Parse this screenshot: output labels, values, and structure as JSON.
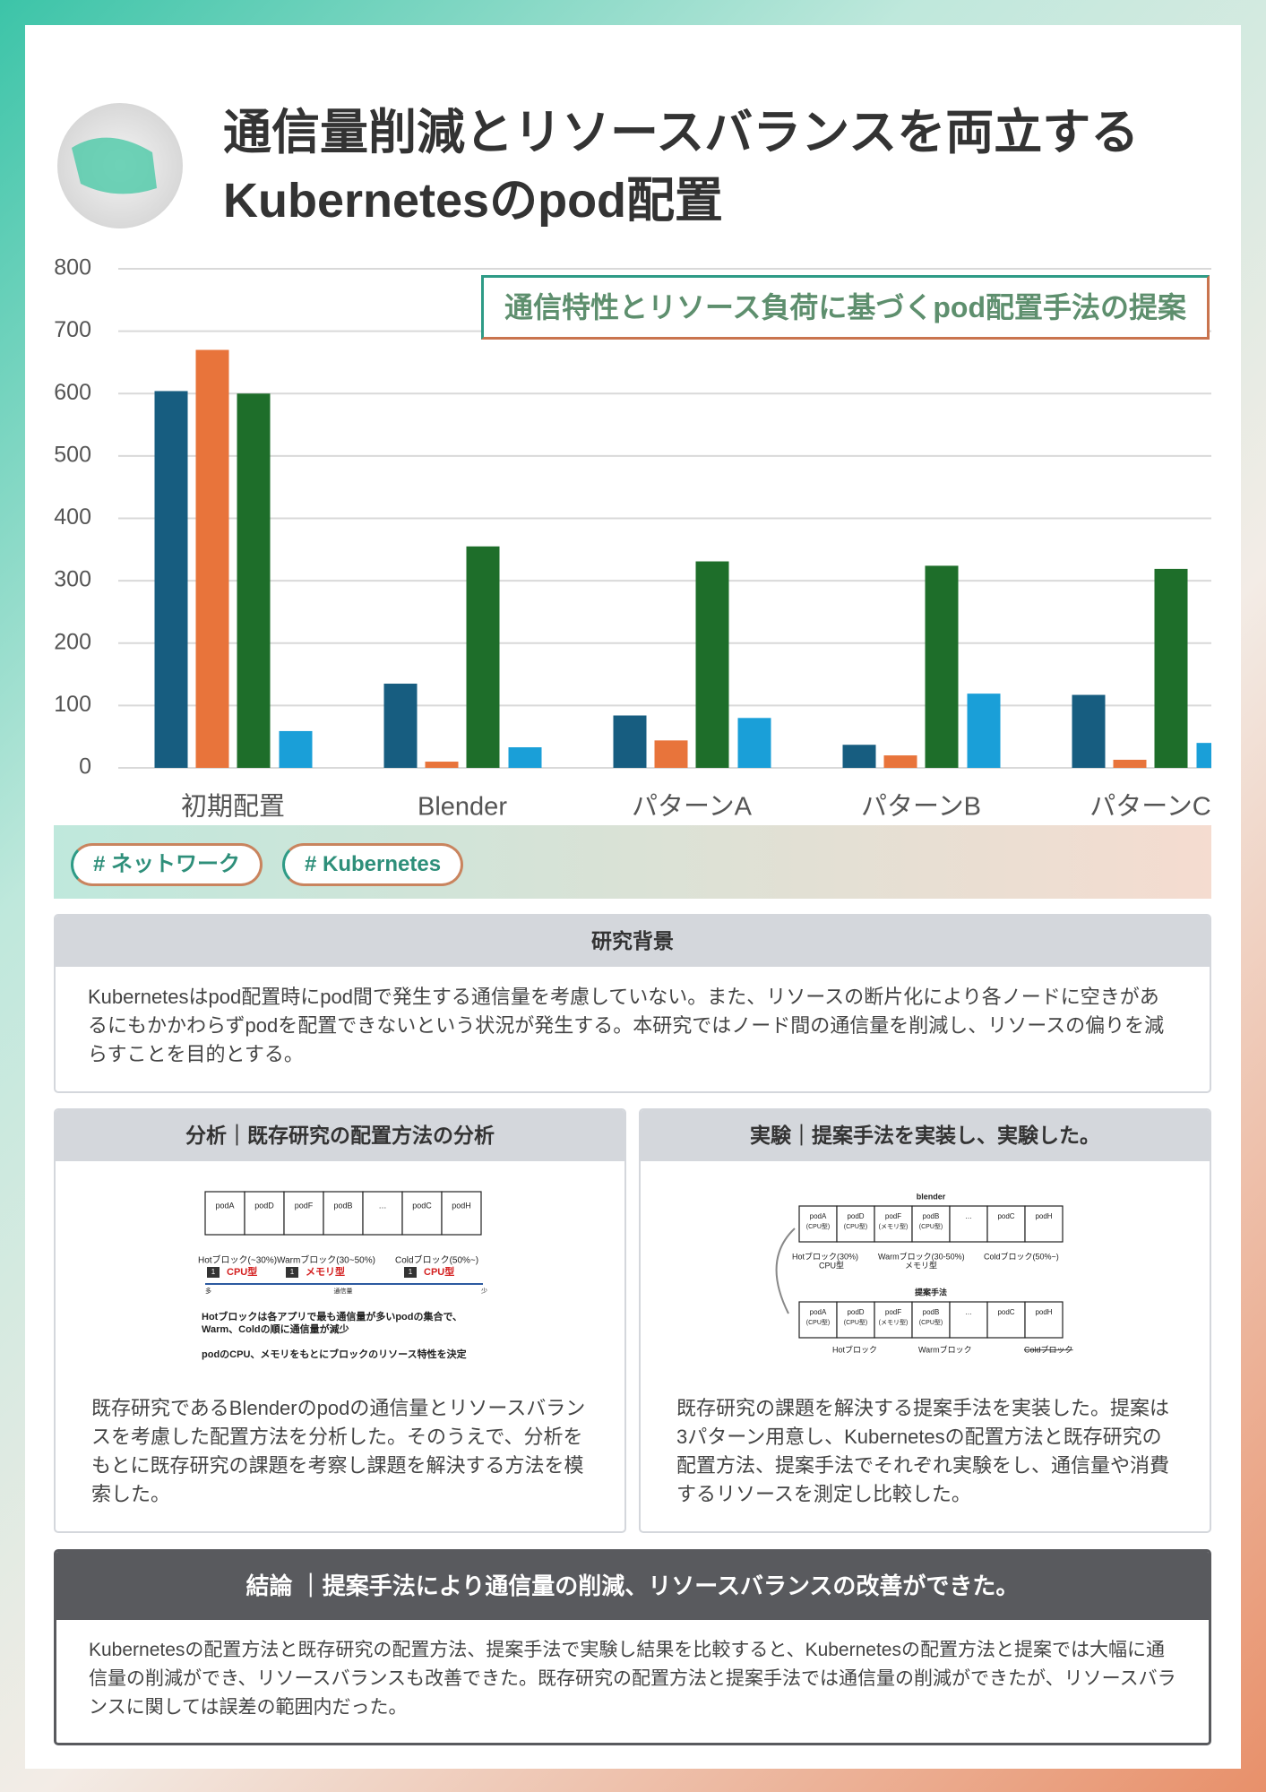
{
  "header": {
    "title_lines": [
      "通信量削減とリソースバランスを両立する",
      "Kubernetesのpod配置"
    ]
  },
  "chart_data": {
    "type": "bar",
    "categories": [
      "初期配置",
      "Blender",
      "パターンA",
      "パターンB",
      "パターンC"
    ],
    "series": [
      {
        "color": "#175d80",
        "values": [
          604,
          135,
          84,
          37,
          117
        ]
      },
      {
        "color": "#e8743b",
        "values": [
          670,
          10,
          44,
          20,
          13
        ]
      },
      {
        "color": "#1e6e2a",
        "values": [
          600,
          355,
          331,
          324,
          319
        ]
      },
      {
        "color": "#1a9fd8",
        "values": [
          59,
          33,
          80,
          119,
          40
        ]
      }
    ],
    "ylim": [
      0,
      800
    ],
    "yticks": [
      0,
      100,
      200,
      300,
      400,
      500,
      600,
      700,
      800
    ],
    "grid": true,
    "annotation": "通信特性とリソース負荷に基づくpod配置手法の提案"
  },
  "tags": [
    "# ネットワーク",
    "# Kubernetes"
  ],
  "background": {
    "heading": "研究背景",
    "text": "Kubernetesはpod配置時にpod間で発生する通信量を考慮していない。また、リソースの断片化により各ノードに空きがあるにもかかわらずpodを配置できないという状況が発生する。本研究ではノード間の通信量を削減し、リソースの偏りを減らすことを目的とする。"
  },
  "analysis": {
    "heading": "分析｜既存研究の配置方法の分析",
    "text": "既存研究であるBlenderのpodの通信量とリソースバランスを考慮した配置方法を分析した。そのうえで、分析をもとに既存研究の課題を考察し課題を解決する方法を模索した。",
    "figure": {
      "pods": [
        "podA",
        "podD",
        "podF",
        "podB",
        "…",
        "podC",
        "podH"
      ],
      "blocks": [
        {
          "label": "Hotブロック(~30%)",
          "type": "CPU型"
        },
        {
          "label": "Warmブロック(30~50%)",
          "type": "メモリ型"
        },
        {
          "label": "Coldブロック(50%~)",
          "type": "CPU型"
        }
      ],
      "badge": "1",
      "arrow": {
        "label": "通信量",
        "start": "多",
        "end": "少"
      },
      "notes": [
        "Hotブロックは各アプリで最も通信量が多いpodの集合で、",
        "Warm、Coldの順に通信量が減少",
        "podのCPU、メモリをもとにブロックのリソース特性を決定"
      ]
    }
  },
  "experiment": {
    "heading": "実験｜提案手法を実装し、実験した。",
    "text": "既存研究の課題を解決する提案手法を実装した。提案は3パターン用意し、Kubernetesの配置方法と既存研究の配置方法、提案手法でそれぞれ実験をし、通信量や消費するリソースを測定し比較した。",
    "figure": {
      "title": "blender",
      "pods": [
        {
          "name": "podA",
          "sub": "(CPU型)"
        },
        {
          "name": "podD",
          "sub": "(CPU型)"
        },
        {
          "name": "podF",
          "sub": "(メモリ型)"
        },
        {
          "name": "podB",
          "sub": "(CPU型)"
        },
        {
          "name": "…"
        },
        {
          "name": "podC"
        },
        {
          "name": "podH"
        }
      ],
      "blocks": [
        {
          "label": "Hotブロック(30%)",
          "type": "CPU型"
        },
        {
          "label": "Warmブロック(30-50%)",
          "type": "メモリ型"
        },
        {
          "label": "Coldブロック(50%~)"
        }
      ],
      "subtitle": "提案手法",
      "result_blocks": [
        "Hotブロック",
        "Warmブロック",
        "Coldブロック"
      ]
    }
  },
  "conclusion": {
    "heading": "結論 ｜提案手法により通信量の削減、リソースバランスの改善ができた。",
    "text": "Kubernetesの配置方法と既存研究の配置方法、提案手法で実験し結果を比較すると、Kubernetesの配置方法と提案では大幅に通信量の削減ができ、リソースバランスも改善できた。既存研究の配置方法と提案手法では通信量の削減ができたが、リソースバランスに関しては誤差の範囲内だった。"
  }
}
